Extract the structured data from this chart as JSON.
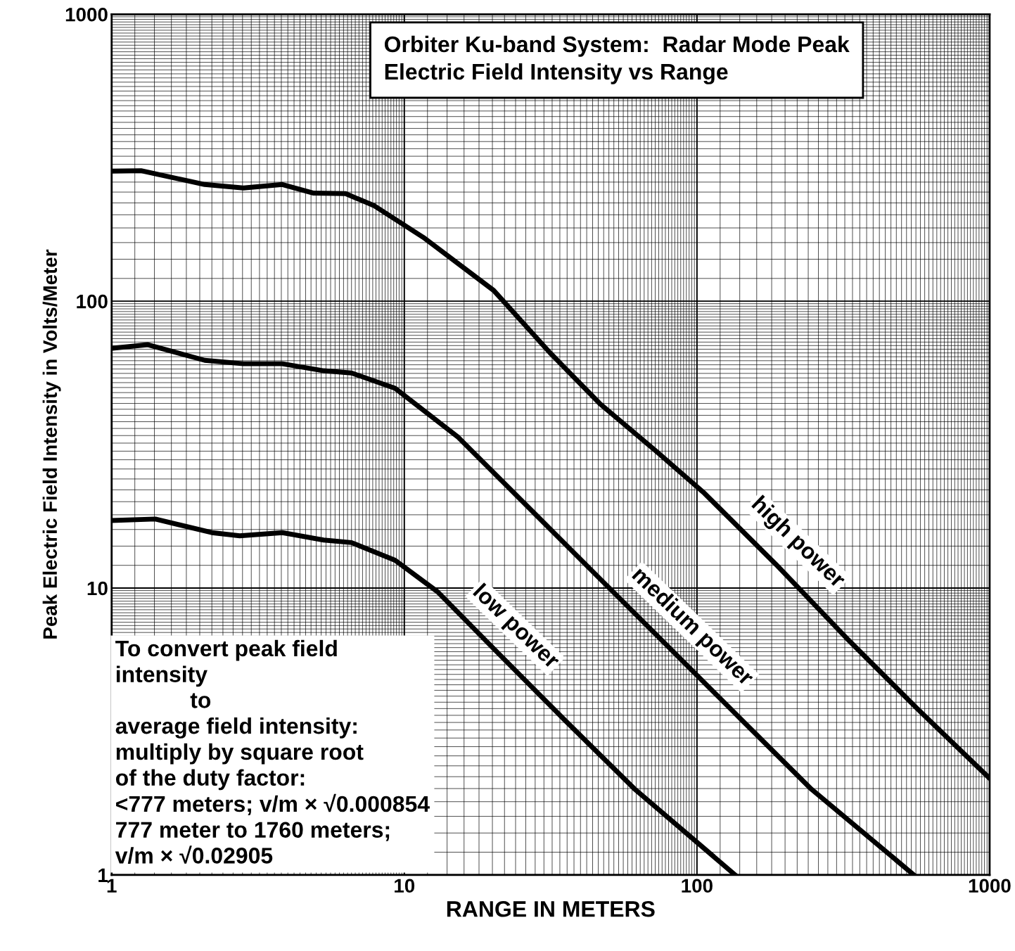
{
  "chart_data": {
    "type": "line",
    "title": "Orbiter Ku-band System:  Radar Mode Peak\nElectric Field Intensity vs Range",
    "xlabel": "RANGE IN METERS",
    "ylabel": "Peak Electric Field Intensity in Volts/Meter",
    "log": "xy",
    "xlim": [
      1,
      1000
    ],
    "ylim": [
      1,
      1000
    ],
    "xticks": [
      1,
      10,
      100,
      1000
    ],
    "yticks": [
      1,
      10,
      100,
      1000
    ],
    "grid": true,
    "marker": "none",
    "line_style": "solid",
    "series": [
      {
        "name": "high power",
        "color": "#000000",
        "x": [
          1,
          1.26,
          2.08,
          2.82,
          3.83,
          4.9,
          6.3,
          7.9,
          11.6,
          20.2,
          31.5,
          46.5,
          72.5,
          106,
          186,
          324,
          564,
          1000
        ],
        "values": [
          284,
          285,
          255,
          248,
          255,
          238,
          237,
          215,
          167,
          109,
          66,
          44,
          30,
          21.4,
          12.1,
          6.7,
          3.81,
          2.17
        ]
      },
      {
        "name": "medium power",
        "color": "#000000",
        "x": [
          1,
          1.33,
          2.08,
          2.82,
          3.83,
          5.3,
          6.6,
          9.3,
          15.3,
          26.7,
          46.5,
          81,
          141,
          246,
          551
        ],
        "values": [
          68.5,
          70.5,
          62.2,
          60.5,
          60.5,
          57.2,
          56.2,
          49.7,
          33.5,
          19.0,
          10.8,
          6.15,
          3.5,
          1.99,
          1
        ]
      },
      {
        "name": "low power",
        "color": "#000000",
        "x": [
          1,
          1.41,
          2.2,
          2.74,
          3.83,
          5.3,
          6.6,
          9.3,
          13,
          20.2,
          35,
          61,
          135
        ],
        "values": [
          17.2,
          17.4,
          15.6,
          15.2,
          15.6,
          14.7,
          14.4,
          12.5,
          9.7,
          6.15,
          3.5,
          2.0,
          1
        ]
      }
    ],
    "annotations": [
      "To convert peak field\nintensity\n            to\naverage field intensity:\nmultiply by square root\nof the duty factor:\n<777 meters; v/m × √0.000854\n777 meter to 1760 meters;\nv/m × √0.02905"
    ]
  }
}
